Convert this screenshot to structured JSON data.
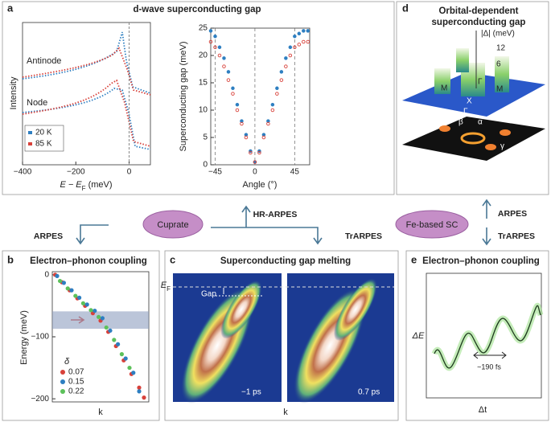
{
  "panel_a": {
    "label": "a",
    "title": "d-wave superconducting gap",
    "spectra": {
      "y_label": "Intensity",
      "x_label": {
        "main": "E − E",
        "sub": "F",
        "unit": " (meV)"
      },
      "xlim": [
        -400,
        80
      ],
      "xticks": [
        {
          "value": -400,
          "label": "−400"
        },
        {
          "value": -200,
          "label": "−200"
        },
        0
      ],
      "reference_x": 0,
      "curve_labels": [
        "Antinode",
        "Node"
      ],
      "legend": [
        {
          "name": "20 K",
          "color": "#2e7fc1"
        },
        {
          "name": "85 K",
          "color": "#d8413a"
        }
      ]
    },
    "gap": {
      "y_label": "Superconducting gap (meV)",
      "x_label": "Angle (°)",
      "xlim": [
        -50,
        62
      ],
      "ylim": [
        0,
        25
      ],
      "xticks": [
        {
          "value": -45,
          "label": "−45"
        },
        0,
        45
      ],
      "yticks": [
        0,
        5,
        10,
        15,
        20,
        25
      ],
      "grid": "x-dashed",
      "x": [
        -50,
        -45,
        -40,
        -35,
        -30,
        -25,
        -20,
        -15,
        -10,
        -5,
        0,
        5,
        10,
        15,
        20,
        25,
        30,
        35,
        40,
        45,
        50,
        55,
        60
      ],
      "series": [
        {
          "name": "20 K",
          "color": "#2e7fc1",
          "values": [
            24.5,
            23.5,
            21.5,
            19.5,
            17,
            14,
            11,
            8,
            5.5,
            2.5,
            0.5,
            2.5,
            5.5,
            8,
            11,
            14,
            17,
            19.5,
            21.5,
            23.5,
            24,
            24.5,
            24.5
          ]
        },
        {
          "name": "85 K",
          "color": "#d8413a",
          "values": [
            22.5,
            21.5,
            20,
            18,
            15.5,
            13,
            10,
            7.5,
            5,
            2.2,
            0.5,
            2.2,
            5,
            7.5,
            10,
            13,
            15.5,
            18,
            20,
            21.5,
            22,
            22.5,
            22.5
          ]
        }
      ]
    }
  },
  "middle": {
    "left_node": "Cuprate",
    "right_node": "Fe-based SC",
    "arrows": [
      "HR-ARPES",
      "ARPES",
      "TrARPES",
      "ARPES",
      "TrARPES"
    ]
  },
  "panel_b": {
    "label": "b",
    "title": "Electron–phonon coupling",
    "y_label": "Energy (meV)",
    "x_label": "k",
    "xlim": [
      0,
      1
    ],
    "ylim": [
      -205,
      5
    ],
    "yticks": [
      0,
      {
        "value": -100,
        "label": "−100"
      },
      {
        "value": -200,
        "label": "−200"
      }
    ],
    "band": [
      -87,
      -59
    ],
    "legend_title": "δ",
    "series": [
      {
        "name": "0.07",
        "color": "#d8413a",
        "x": [
          0.03,
          0.1,
          0.18,
          0.26,
          0.34,
          0.42,
          0.5,
          0.58,
          0.66,
          0.74,
          0.82,
          0.9,
          0.95
        ],
        "values": [
          0,
          -12,
          -25,
          -38,
          -50,
          -62,
          -74,
          -92,
          -115,
          -138,
          -160,
          -182,
          -198
        ]
      },
      {
        "name": "0.15",
        "color": "#2e7fc1",
        "x": [
          0.05,
          0.12,
          0.2,
          0.28,
          0.36,
          0.44,
          0.52,
          0.6,
          0.68,
          0.76,
          0.84,
          0.9
        ],
        "values": [
          -2,
          -13,
          -25,
          -37,
          -48,
          -58,
          -70,
          -90,
          -112,
          -135,
          -158,
          -188
        ]
      },
      {
        "name": "0.22",
        "color": "#5cc15a",
        "x": [
          0.08,
          0.16,
          0.24,
          0.32,
          0.4,
          0.48,
          0.56,
          0.64,
          0.72,
          0.8
        ],
        "values": [
          -10,
          -22,
          -34,
          -46,
          -57,
          -68,
          -85,
          -105,
          -128,
          -150
        ]
      }
    ]
  },
  "panel_c": {
    "label": "c",
    "title": "Superconducting gap melting",
    "ef": {
      "main": "E",
      "sub": "F"
    },
    "gap": "Gap",
    "frames": [
      "−1 ps",
      "0.7 ps"
    ],
    "x_label": "k"
  },
  "panel_d": {
    "label": "d",
    "title": [
      "Orbital-dependent",
      "superconducting gap"
    ],
    "axis": "|Δ| (meV)",
    "axis_ticks": [
      "12",
      "6"
    ],
    "points": [
      "M",
      "Γ",
      "X",
      "Γ",
      "M"
    ],
    "pockets": [
      "β",
      "α",
      "γ"
    ]
  },
  "panel_e": {
    "label": "e",
    "title": "Electron–phonon coupling",
    "y_label": "ΔE",
    "x_label": "Δt",
    "period": "~190 fs"
  }
}
